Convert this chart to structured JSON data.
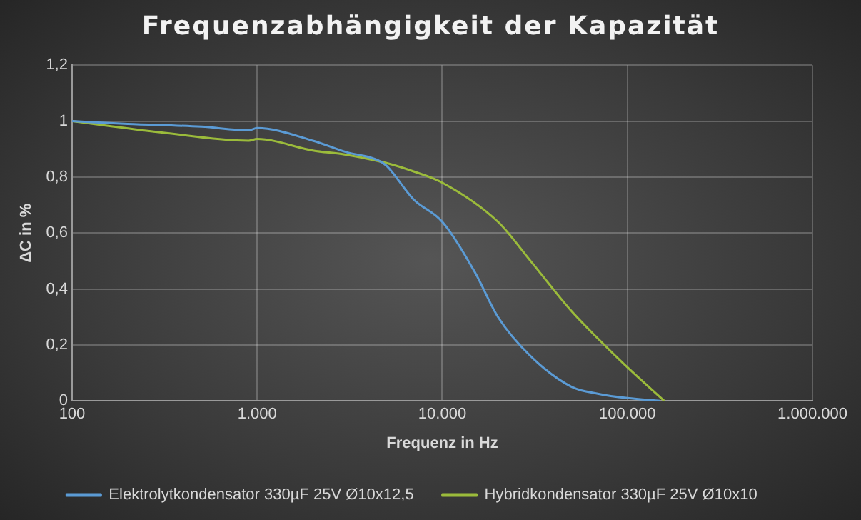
{
  "chart_data": {
    "type": "line",
    "title": "Frequenzabhängigkeit der Kapazität",
    "xlabel": "Frequenz in Hz",
    "ylabel": "ΔC in %",
    "log": "x",
    "xlim": [
      100,
      1000000
    ],
    "xticks": [
      100,
      {
        "value": 1000,
        "label": "1.000"
      },
      {
        "value": 10000,
        "label": "10.000"
      },
      {
        "value": 100000,
        "label": "100.000"
      },
      {
        "value": 1000000,
        "label": "1.000.000"
      }
    ],
    "ylim": [
      0,
      1.2
    ],
    "yticks": [
      0,
      {
        "value": 0.2,
        "label": "0,2"
      },
      {
        "value": 0.4,
        "label": "0,4"
      },
      {
        "value": 0.6,
        "label": "0,6"
      },
      {
        "value": 0.8,
        "label": "0,8"
      },
      1,
      {
        "value": 1.2,
        "label": "1,2"
      }
    ],
    "grid": true,
    "legend": "bottom",
    "marker": "none",
    "line_style": "solid",
    "series": [
      {
        "name": "Elektrolytkondensator 330µF 25V Ø10x12,5",
        "color": "#5b9bd5",
        "x": [
          100,
          200,
          500,
          900,
          1000,
          2000,
          3000,
          4500,
          5000,
          7000,
          10000,
          15000,
          20000,
          30000,
          50000,
          70000,
          100000,
          150000
        ],
        "values": [
          1,
          0.99,
          0.98,
          0.967,
          0.975,
          0.93,
          0.89,
          0.86,
          0.84,
          0.72,
          0.64,
          0.46,
          0.3,
          0.16,
          0.05,
          0.025,
          0.01,
          0
        ]
      },
      {
        "name": "Hybridkondensator 330µF 25V Ø10x10",
        "color": "#9bbb3b",
        "x": [
          100,
          300,
          900,
          1000,
          2000,
          3000,
          5000,
          7000,
          10000,
          20000,
          30000,
          50000,
          70000,
          100000,
          158000
        ],
        "values": [
          1,
          0.96,
          0.93,
          0.936,
          0.895,
          0.88,
          0.85,
          0.82,
          0.78,
          0.64,
          0.5,
          0.32,
          0.22,
          0.12,
          0
        ]
      }
    ]
  }
}
